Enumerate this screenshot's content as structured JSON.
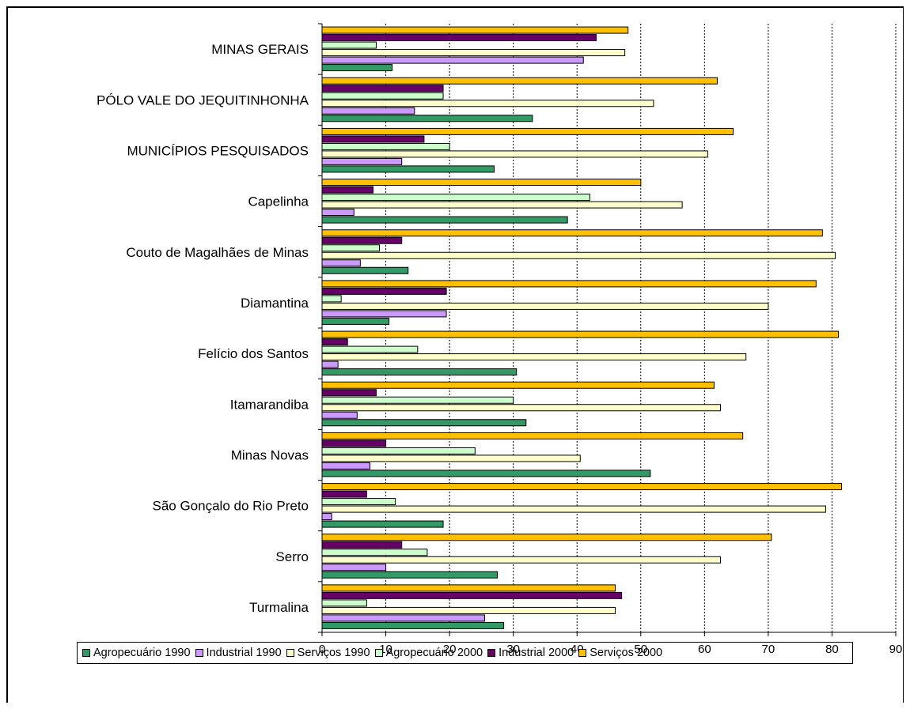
{
  "chart_data": {
    "type": "bar",
    "orientation": "horizontal",
    "categories": [
      "MINAS GERAIS",
      "PÓLO VALE  DO JEQUITINHONHA",
      "MUNICÍPIOS PESQUISADOS",
      "Capelinha",
      "Couto de Magalhães de Minas",
      "Diamantina",
      "Felício dos Santos",
      "Itamarandiba",
      "Minas Novas",
      "São Gonçalo do Rio Preto",
      "Serro",
      "Turmalina"
    ],
    "series": [
      {
        "name": "Agropecuário 1990",
        "color": "#339966",
        "values": [
          11,
          33,
          27,
          38.5,
          13.5,
          10.5,
          30.5,
          32,
          51.5,
          19,
          27.5,
          28.5
        ]
      },
      {
        "name": "Industrial 1990",
        "color": "#cc99ff",
        "values": [
          41,
          14.5,
          12.5,
          5,
          6,
          19.5,
          2.5,
          5.5,
          7.5,
          1.5,
          10,
          25.5
        ]
      },
      {
        "name": "Serviços 1990",
        "color": "#ffffcc",
        "values": [
          47.5,
          52,
          60.5,
          56.5,
          80.5,
          70,
          66.5,
          62.5,
          40.5,
          79,
          62.5,
          46
        ]
      },
      {
        "name": "Agropecuário  2000",
        "color": "#ccffcc",
        "values": [
          8.5,
          19,
          20,
          42,
          9,
          3,
          15,
          30,
          24,
          11.5,
          16.5,
          7
        ]
      },
      {
        "name": "Industrial 2000",
        "color": "#660066",
        "values": [
          43,
          19,
          16,
          8,
          12.5,
          19.5,
          4,
          8.5,
          10,
          7,
          12.5,
          47
        ]
      },
      {
        "name": "Serviços 2000",
        "color": "#ffc000",
        "values": [
          48,
          62,
          64.5,
          50,
          78.5,
          77.5,
          81,
          61.5,
          66,
          81.5,
          70.5,
          46
        ]
      }
    ],
    "x_ticks": [
      "0",
      "10",
      "20",
      "30",
      "40",
      "50",
      "60",
      "70",
      "80",
      "90"
    ],
    "xlim": [
      0,
      90
    ],
    "grid": "vertical dotted",
    "legend_position": "bottom",
    "title": "",
    "xlabel": "",
    "ylabel": ""
  }
}
